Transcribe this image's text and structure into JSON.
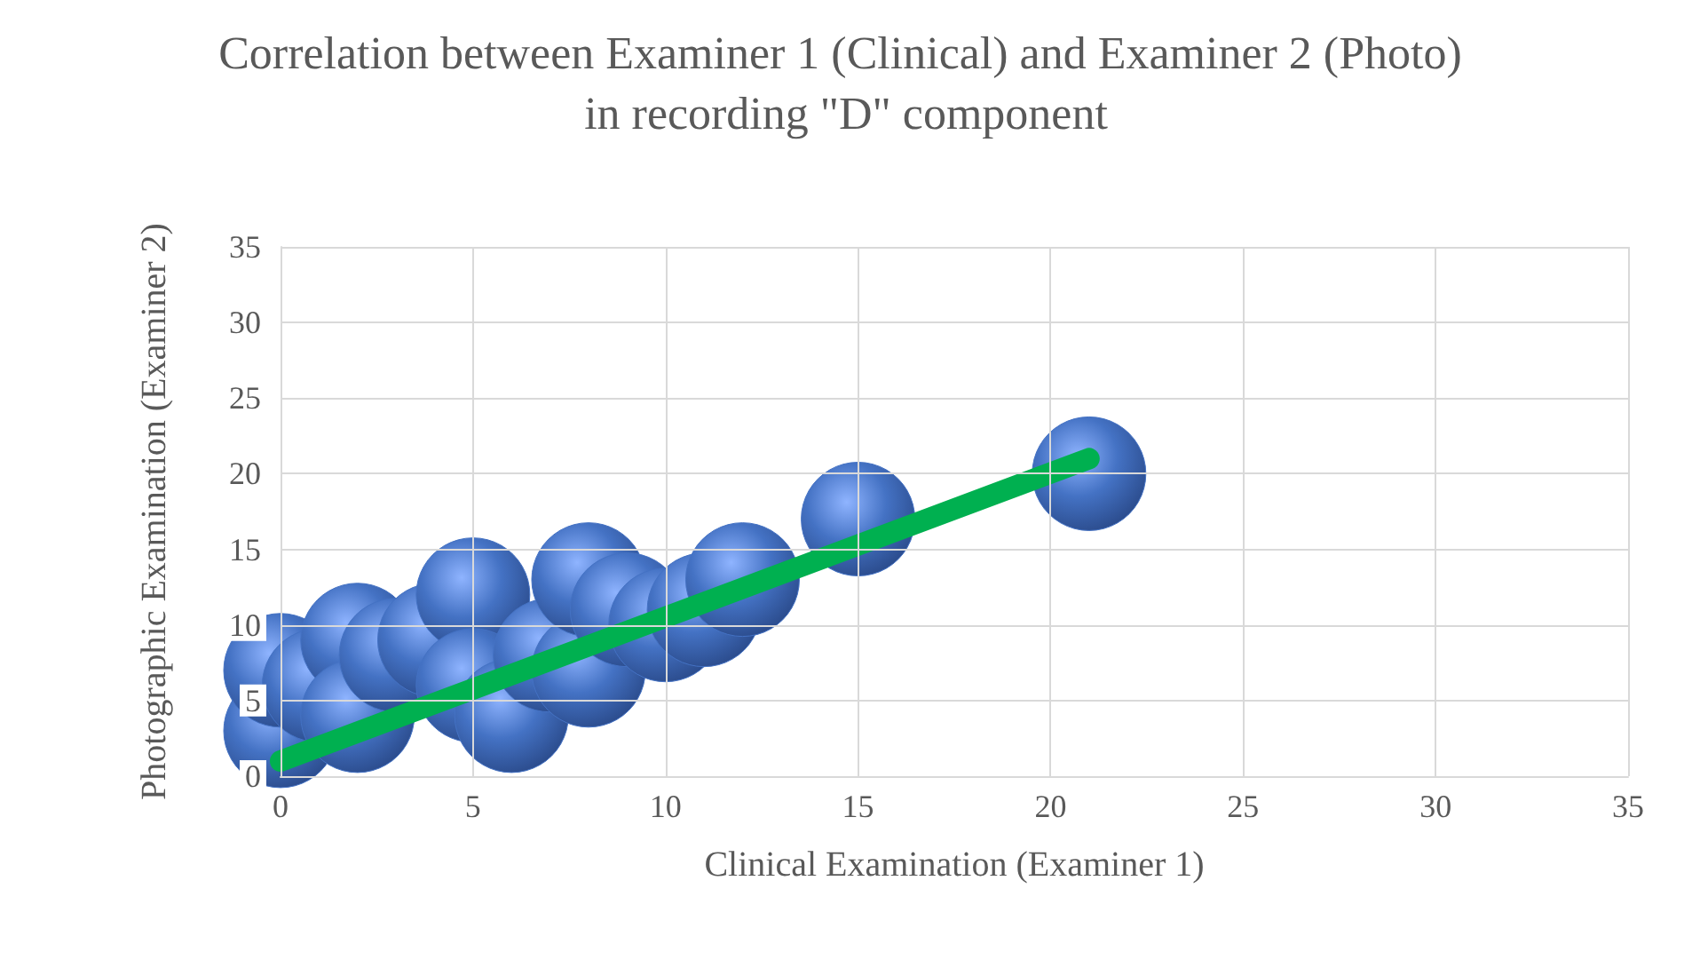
{
  "chart_data": {
    "type": "bubble",
    "title": "Correlation between Examiner 1 (Clinical) and Examiner 2 (Photo) in recording \"D\" component",
    "xlabel": "Clinical Examination (Examiner 1)",
    "ylabel": "Photographic Examination (Examiner 2)",
    "xlim": [
      0,
      35
    ],
    "xticks": [
      0,
      5,
      10,
      15,
      20,
      25,
      30,
      35
    ],
    "ylim": [
      0,
      35
    ],
    "yticks": [
      0,
      5,
      10,
      15,
      20,
      25,
      30,
      35
    ],
    "grid": true,
    "series": [
      {
        "color": "#4472c4",
        "x": [
          0,
          0,
          1,
          2,
          2,
          3,
          4,
          5,
          5,
          6,
          7,
          8,
          8,
          9,
          10,
          11,
          12,
          15,
          21
        ],
        "values": [
          3,
          7,
          6,
          9,
          4,
          8,
          9,
          12,
          6,
          4,
          8,
          7,
          13,
          11,
          10,
          11,
          13,
          17,
          20
        ],
        "sizes": [
          1,
          1,
          1,
          1,
          1,
          1,
          1,
          1,
          1,
          1,
          1,
          1,
          1,
          1,
          1,
          1,
          1,
          1,
          1
        ]
      },
      {
        "type": "line",
        "color": "#00b050",
        "x": [
          0,
          21
        ],
        "values": [
          1,
          21
        ],
        "marker": "none"
      }
    ]
  }
}
